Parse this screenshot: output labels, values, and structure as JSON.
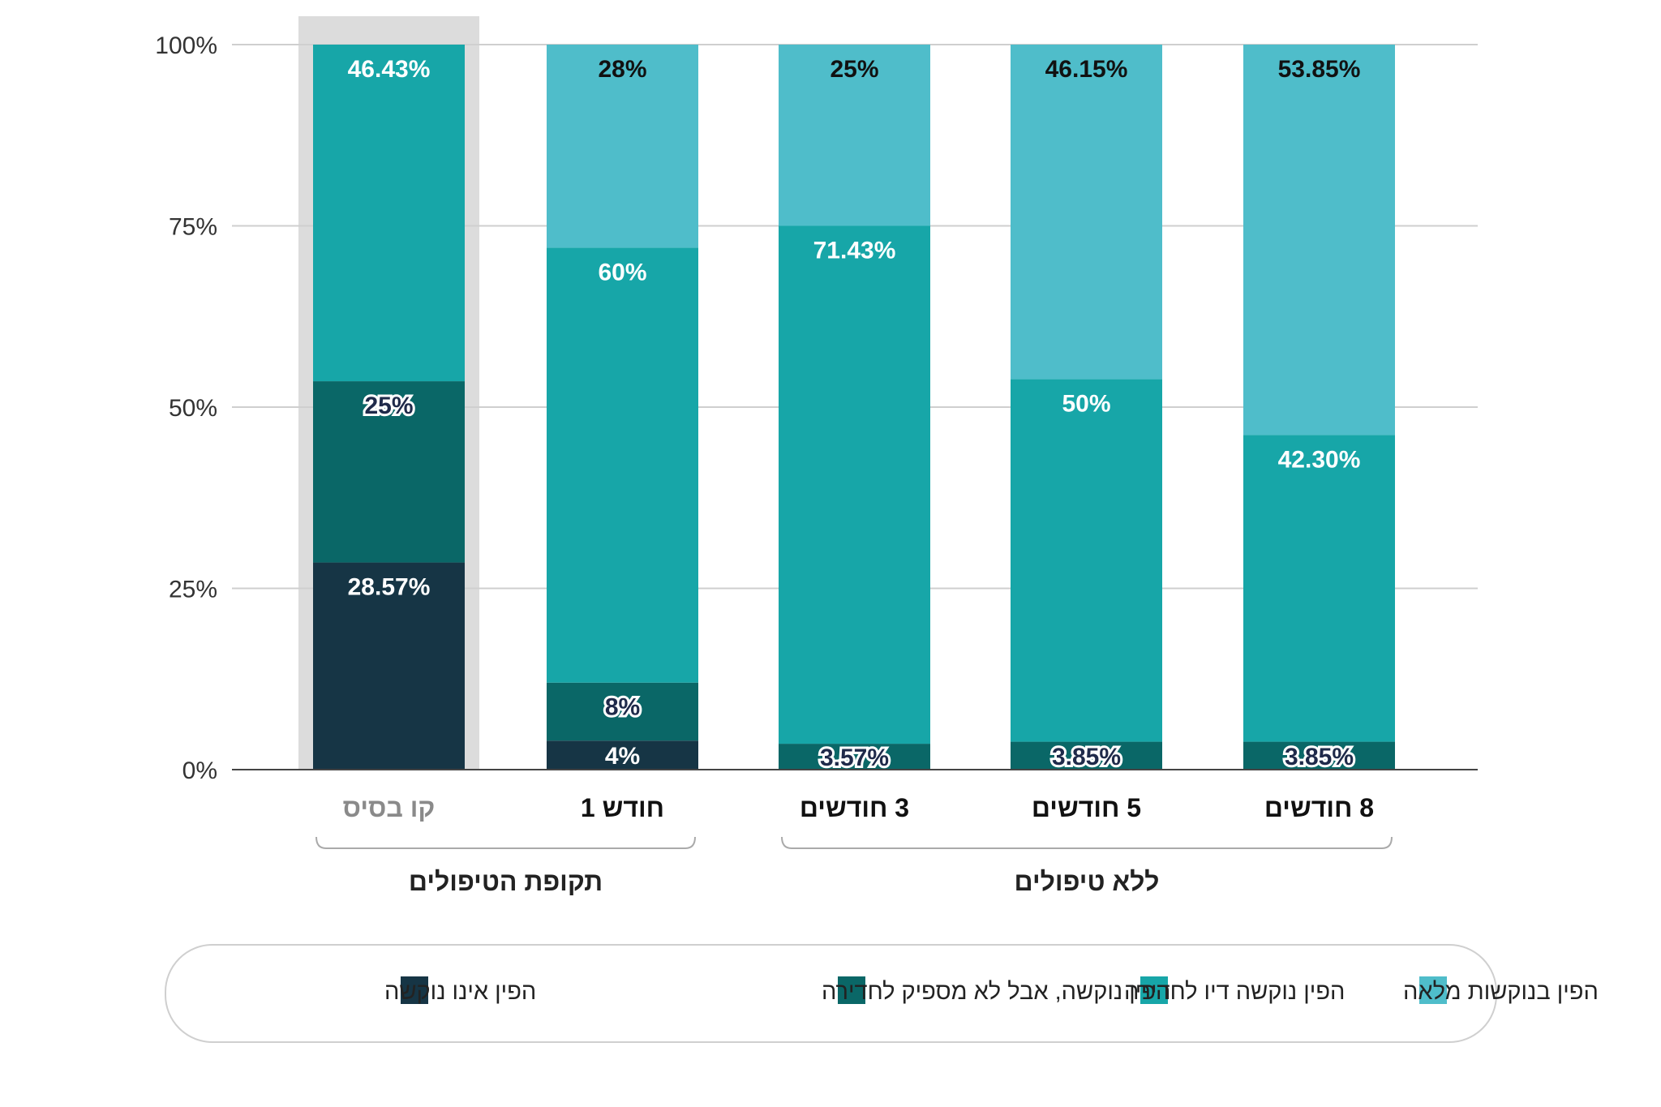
{
  "chart_data": {
    "type": "bar",
    "stacked": true,
    "direction": "rtl",
    "ylim": [
      0,
      100
    ],
    "yticks": [
      "0%",
      "25%",
      "50%",
      "75%",
      "100%"
    ],
    "ytick_values": [
      0,
      25,
      50,
      75,
      100
    ],
    "categories": [
      "קו בסיס",
      "חודש 1",
      "3 חודשים",
      "5 חודשים",
      "8 חודשים"
    ],
    "highlighted_category": "קו בסיס",
    "groups": [
      {
        "label": "תקופת הטיפולים",
        "categories": [
          "קו בסיס",
          "חודש 1"
        ]
      },
      {
        "label": "ללא טיפולים",
        "categories": [
          "3 חודשים",
          "5 חודשים",
          "8 חודשים"
        ]
      }
    ],
    "series": [
      {
        "name": "הפין אינו נוקשה",
        "color": "#163545",
        "values": [
          28.57,
          4,
          0,
          0,
          0
        ],
        "labels": [
          "28.57%",
          "4%",
          "",
          "",
          ""
        ]
      },
      {
        "name": "הפין נוקשה, אבל לא מספיק לחדירה",
        "color": "#0a6767",
        "values": [
          25,
          8,
          3.57,
          3.85,
          3.85
        ],
        "labels": [
          "25%",
          "8%",
          "3.57%",
          "3.85%",
          "3.85%"
        ]
      },
      {
        "name": "הפין נוקשה דיו לחדירה",
        "color": "#17a6a8",
        "values": [
          46.43,
          60,
          71.43,
          50,
          42.3
        ],
        "labels": [
          "46.43%",
          "60%",
          "71.43%",
          "50%",
          "42.30%"
        ]
      },
      {
        "name": "הפין בנוקשות מלאה",
        "color": "#4fbdca",
        "values": [
          0,
          28,
          25,
          46.15,
          53.85
        ],
        "labels": [
          "",
          "28%",
          "25%",
          "46.15%",
          "53.85%"
        ]
      }
    ],
    "legend_position": "bottom",
    "grid": true
  }
}
